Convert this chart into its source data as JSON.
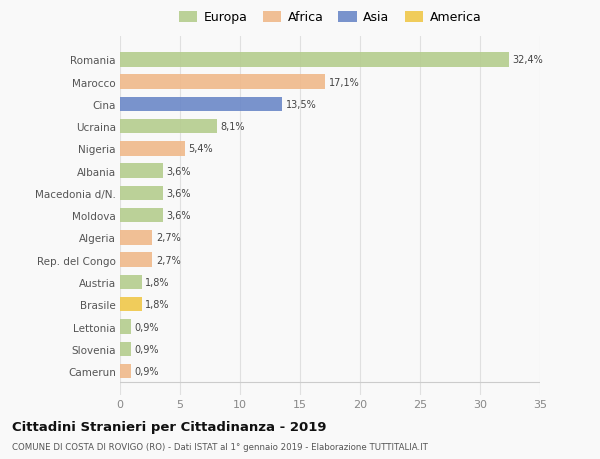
{
  "countries": [
    "Romania",
    "Marocco",
    "Cina",
    "Ucraina",
    "Nigeria",
    "Albania",
    "Macedonia d/N.",
    "Moldova",
    "Algeria",
    "Rep. del Congo",
    "Austria",
    "Brasile",
    "Lettonia",
    "Slovenia",
    "Camerun"
  ],
  "values": [
    32.4,
    17.1,
    13.5,
    8.1,
    5.4,
    3.6,
    3.6,
    3.6,
    2.7,
    2.7,
    1.8,
    1.8,
    0.9,
    0.9,
    0.9
  ],
  "labels": [
    "32,4%",
    "17,1%",
    "13,5%",
    "8,1%",
    "5,4%",
    "3,6%",
    "3,6%",
    "3,6%",
    "2,7%",
    "2,7%",
    "1,8%",
    "1,8%",
    "0,9%",
    "0,9%",
    "0,9%"
  ],
  "colors": [
    "#b5cd8e",
    "#f0b98a",
    "#6b88c8",
    "#b5cd8e",
    "#f0b98a",
    "#b5cd8e",
    "#b5cd8e",
    "#b5cd8e",
    "#f0b98a",
    "#f0b98a",
    "#b5cd8e",
    "#f0c84a",
    "#b5cd8e",
    "#b5cd8e",
    "#f0b98a"
  ],
  "legend_labels": [
    "Europa",
    "Africa",
    "Asia",
    "America"
  ],
  "legend_colors": [
    "#b5cd8e",
    "#f0b98a",
    "#6b88c8",
    "#f0c84a"
  ],
  "title": "Cittadini Stranieri per Cittadinanza - 2019",
  "subtitle": "COMUNE DI COSTA DI ROVIGO (RO) - Dati ISTAT al 1° gennaio 2019 - Elaborazione TUTTITALIA.IT",
  "xlim": [
    0,
    35
  ],
  "xticks": [
    0,
    5,
    10,
    15,
    20,
    25,
    30,
    35
  ],
  "background_color": "#f9f9f9",
  "grid_color": "#e0e0e0",
  "bar_height": 0.65
}
